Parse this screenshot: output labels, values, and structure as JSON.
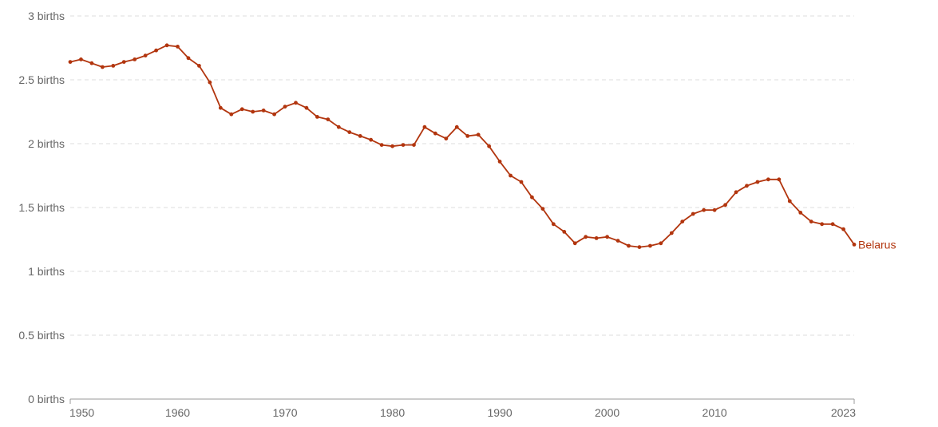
{
  "chart_data": {
    "type": "line",
    "y_unit": "births",
    "y_ticks": [
      {
        "value": 0,
        "label": "0 births"
      },
      {
        "value": 0.5,
        "label": "0.5 births"
      },
      {
        "value": 1,
        "label": "1 births"
      },
      {
        "value": 1.5,
        "label": "1.5 births"
      },
      {
        "value": 2,
        "label": "2 births"
      },
      {
        "value": 2.5,
        "label": "2.5 births"
      },
      {
        "value": 3,
        "label": "3 births"
      }
    ],
    "x_ticks": [
      {
        "value": 1950,
        "label": "1950"
      },
      {
        "value": 1960,
        "label": "1960"
      },
      {
        "value": 1970,
        "label": "1970"
      },
      {
        "value": 1980,
        "label": "1980"
      },
      {
        "value": 1990,
        "label": "1990"
      },
      {
        "value": 2000,
        "label": "2000"
      },
      {
        "value": 2010,
        "label": "2010"
      },
      {
        "value": 2023,
        "label": "2023"
      }
    ],
    "xlim": [
      1950,
      2023
    ],
    "ylim": [
      0,
      3
    ],
    "grid": true,
    "series": [
      {
        "name": "Belarus",
        "color": "#b2350e",
        "x": [
          1950,
          1951,
          1952,
          1953,
          1954,
          1955,
          1956,
          1957,
          1958,
          1959,
          1960,
          1961,
          1962,
          1963,
          1964,
          1965,
          1966,
          1967,
          1968,
          1969,
          1970,
          1971,
          1972,
          1973,
          1974,
          1975,
          1976,
          1977,
          1978,
          1979,
          1980,
          1981,
          1982,
          1983,
          1984,
          1985,
          1986,
          1987,
          1988,
          1989,
          1990,
          1991,
          1992,
          1993,
          1994,
          1995,
          1996,
          1997,
          1998,
          1999,
          2000,
          2001,
          2002,
          2003,
          2004,
          2005,
          2006,
          2007,
          2008,
          2009,
          2010,
          2011,
          2012,
          2013,
          2014,
          2015,
          2016,
          2017,
          2018,
          2019,
          2020,
          2021,
          2022,
          2023
        ],
        "y": [
          2.64,
          2.66,
          2.63,
          2.6,
          2.61,
          2.64,
          2.66,
          2.69,
          2.73,
          2.77,
          2.76,
          2.67,
          2.61,
          2.48,
          2.28,
          2.23,
          2.27,
          2.25,
          2.26,
          2.23,
          2.29,
          2.32,
          2.28,
          2.21,
          2.19,
          2.13,
          2.09,
          2.06,
          2.03,
          1.99,
          1.98,
          1.99,
          1.99,
          2.13,
          2.08,
          2.04,
          2.13,
          2.06,
          2.07,
          1.98,
          1.86,
          1.75,
          1.7,
          1.58,
          1.49,
          1.37,
          1.31,
          1.22,
          1.27,
          1.26,
          1.27,
          1.24,
          1.2,
          1.19,
          1.2,
          1.22,
          1.3,
          1.39,
          1.45,
          1.48,
          1.48,
          1.52,
          1.62,
          1.67,
          1.7,
          1.72,
          1.72,
          1.55,
          1.46,
          1.39,
          1.37,
          1.37,
          1.33,
          1.21
        ]
      }
    ]
  }
}
